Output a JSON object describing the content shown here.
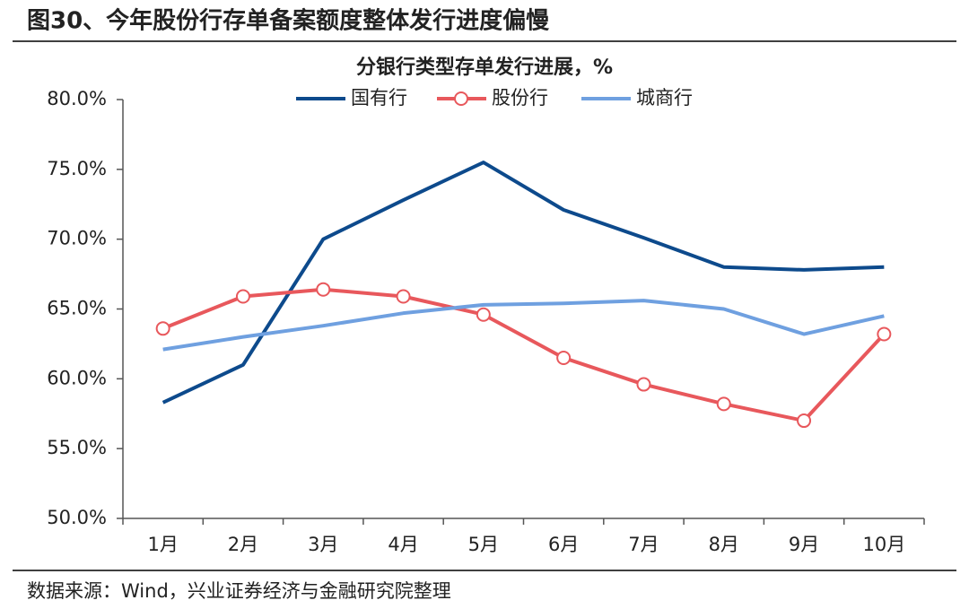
{
  "figure_title": "图30、今年股份行存单备案额度整体发行进度偏慢",
  "source": "数据来源：Wind，兴业证券经济与金融研究院整理",
  "chart_data": {
    "type": "line",
    "title": "分银行类型存单发行进展，%",
    "categories": [
      "1月",
      "2月",
      "3月",
      "4月",
      "5月",
      "6月",
      "7月",
      "8月",
      "9月",
      "10月"
    ],
    "series": [
      {
        "name": "国有行",
        "color": "#0d4a8c",
        "marker": false,
        "values": [
          58.3,
          61.0,
          70.0,
          72.8,
          75.5,
          72.1,
          70.1,
          68.0,
          67.8,
          68.0
        ]
      },
      {
        "name": "股份行",
        "color": "#e8585c",
        "marker": true,
        "values": [
          63.6,
          65.9,
          66.4,
          65.9,
          64.6,
          61.5,
          59.6,
          58.2,
          57.0,
          63.2
        ]
      },
      {
        "name": "城商行",
        "color": "#6fa0e0",
        "marker": false,
        "values": [
          62.1,
          63.0,
          63.8,
          64.7,
          65.3,
          65.4,
          65.6,
          65.0,
          63.2,
          64.5
        ]
      }
    ],
    "ylim": [
      50,
      80
    ],
    "yticks": [
      {
        "value": 50,
        "label": "50.0%"
      },
      {
        "value": 55,
        "label": "55.0%"
      },
      {
        "value": 60,
        "label": "60.0%"
      },
      {
        "value": 65,
        "label": "65.0%"
      },
      {
        "value": 70,
        "label": "70.0%"
      },
      {
        "value": 75,
        "label": "75.0%"
      },
      {
        "value": 80,
        "label": "80.0%"
      }
    ],
    "grid": false,
    "legend": "top"
  }
}
